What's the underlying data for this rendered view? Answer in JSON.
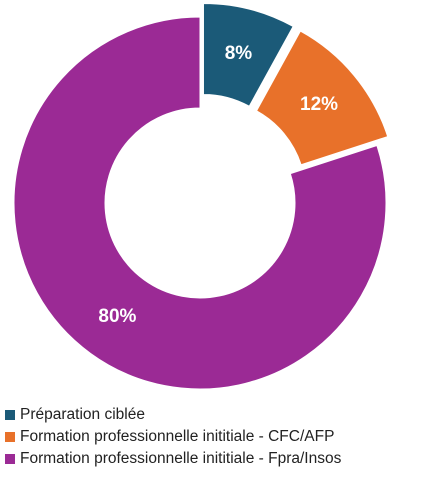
{
  "chart_data": {
    "type": "pie",
    "donut": true,
    "categories": [
      "Préparation ciblée",
      "Formation professionnelle inititiale - CFC/AFP",
      "Formation professionnelle inititiale - Fpra/Insos"
    ],
    "values": [
      8,
      12,
      80
    ],
    "data_labels": [
      "8%",
      "12%",
      "80%"
    ],
    "colors": [
      "#1b5a78",
      "#e8712a",
      "#9b2a95"
    ],
    "exploded": [
      true,
      true,
      false
    ],
    "legend_position": "bottom-left",
    "title": ""
  }
}
